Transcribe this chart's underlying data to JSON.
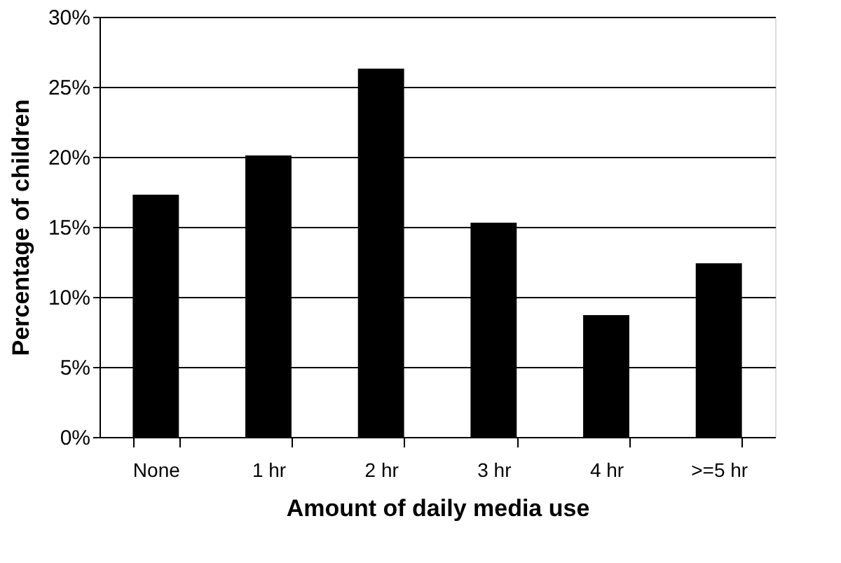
{
  "chart_data": {
    "type": "bar",
    "xlabel": "Amount of daily media use",
    "ylabel": "Percentage of children",
    "categories": [
      "None",
      "1 hr",
      "2 hr",
      "3 hr",
      "4 hr",
      ">=5 hr"
    ],
    "values": [
      17.3,
      20.1,
      26.3,
      15.3,
      8.7,
      12.4
    ],
    "color": "#000000",
    "ylim": [
      0,
      30
    ],
    "yticks": [
      {
        "value": 0,
        "label": "0%"
      },
      {
        "value": 5,
        "label": "5%"
      },
      {
        "value": 10,
        "label": "10%"
      },
      {
        "value": 15,
        "label": "15%"
      },
      {
        "value": 20,
        "label": "20%"
      },
      {
        "value": 25,
        "label": "25%"
      },
      {
        "value": 30,
        "label": "30%"
      }
    ],
    "grid": "y"
  }
}
